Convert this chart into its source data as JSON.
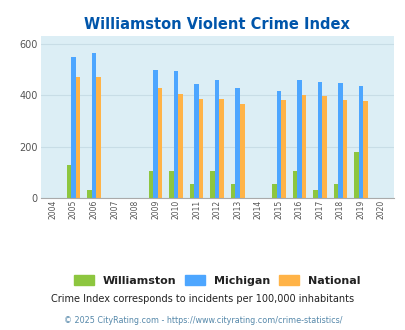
{
  "title": "Williamston Violent Crime Index",
  "all_years": [
    2004,
    2005,
    2006,
    2007,
    2008,
    2009,
    2010,
    2011,
    2012,
    2013,
    2014,
    2015,
    2016,
    2017,
    2018,
    2019,
    2020
  ],
  "williamston": [
    0,
    130,
    30,
    0,
    0,
    105,
    105,
    55,
    105,
    55,
    0,
    55,
    105,
    30,
    55,
    180,
    0
  ],
  "michigan": [
    0,
    550,
    565,
    0,
    0,
    500,
    493,
    445,
    460,
    430,
    0,
    415,
    460,
    453,
    450,
    435,
    0
  ],
  "national": [
    0,
    470,
    473,
    0,
    0,
    430,
    405,
    387,
    387,
    365,
    0,
    383,
    400,
    397,
    380,
    377,
    0
  ],
  "ylim": [
    0,
    630
  ],
  "yticks": [
    0,
    200,
    400,
    600
  ],
  "bar_colors": {
    "williamston": "#8dc63f",
    "michigan": "#4da6ff",
    "national": "#ffb347"
  },
  "bg_color": "#dceef5",
  "grid_color": "#c8dde6",
  "title_color": "#0055aa",
  "footer_text": "Crime Index corresponds to incidents per 100,000 inhabitants",
  "copyright_text": "© 2025 CityRating.com - https://www.cityrating.com/crime-statistics/",
  "legend_labels": [
    "Williamston",
    "Michigan",
    "National"
  ],
  "bar_width": 0.22
}
